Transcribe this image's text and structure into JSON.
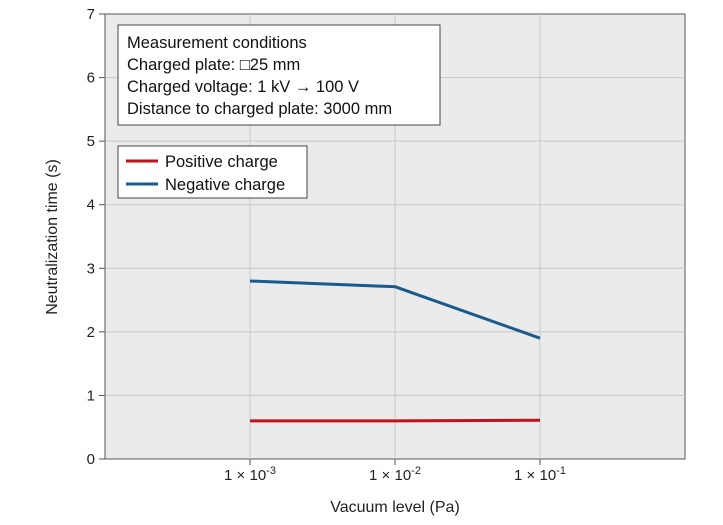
{
  "chart_data": {
    "type": "line",
    "x": [
      "1 × 10-3",
      "1 × 10-2",
      "1 × 10-1"
    ],
    "x_ticks": [
      {
        "base": "1 × 10",
        "exp": "-3"
      },
      {
        "base": "1 × 10",
        "exp": "-2"
      },
      {
        "base": "1 × 10",
        "exp": "-1"
      }
    ],
    "x_scale": "log",
    "series": [
      {
        "name": "Positive charge",
        "values": [
          0.6,
          0.6,
          0.61
        ],
        "color": "#c0111f"
      },
      {
        "name": "Negative charge",
        "values": [
          2.8,
          2.71,
          1.9
        ],
        "color": "#1a5a8c"
      }
    ],
    "xlabel": "Vacuum level (Pa)",
    "ylabel": "Neutralization time (s)",
    "ylim": [
      0,
      7
    ],
    "yticks": [
      0,
      1,
      2,
      3,
      4,
      5,
      6,
      7
    ],
    "grid": true,
    "legend_position": "upper-left",
    "annotation": {
      "title": "Measurement conditions",
      "lines": [
        "Charged plate: □25 mm",
        "Charged voltage: 1 kV → 100 V",
        "Distance to charged plate: 3000 mm"
      ]
    },
    "background_color": "#ebebeb",
    "grid_color": "#c8c8c8"
  }
}
